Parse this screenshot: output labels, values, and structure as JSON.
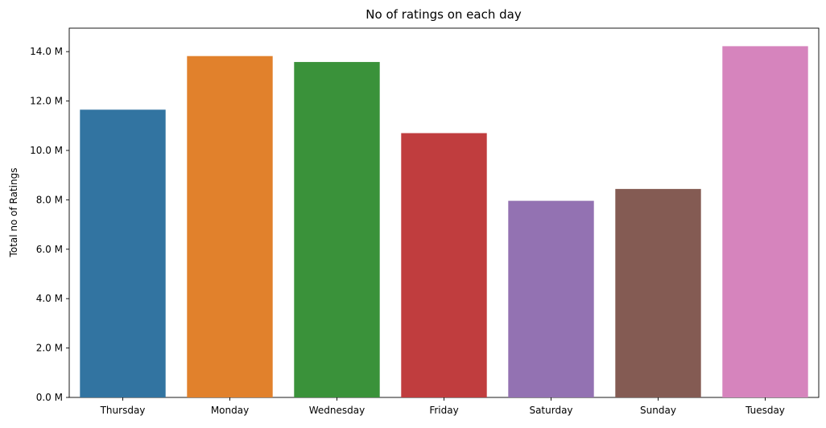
{
  "chart_data": {
    "type": "bar",
    "title": "No of ratings on each day",
    "xlabel": "",
    "ylabel": "Total no of Ratings",
    "categories": [
      "Thursday",
      "Monday",
      "Wednesday",
      "Friday",
      "Saturday",
      "Sunday",
      "Tuesday"
    ],
    "values": [
      11.65,
      13.82,
      13.58,
      10.7,
      7.96,
      8.44,
      14.22
    ],
    "value_unit": "M",
    "ylim": [
      0,
      14.95
    ],
    "yticks": [
      0,
      2,
      4,
      6,
      8,
      10,
      12,
      14
    ],
    "ytick_labels": [
      "0.0 M",
      "2.0 M",
      "4.0 M",
      "6.0 M",
      "8.0 M",
      "10.0 M",
      "12.0 M",
      "14.0 M"
    ],
    "colors": [
      "#3274a1",
      "#e1812c",
      "#3a923a",
      "#c03d3e",
      "#9372b2",
      "#845b53",
      "#d684bd"
    ],
    "grid": false,
    "legend": "none"
  }
}
